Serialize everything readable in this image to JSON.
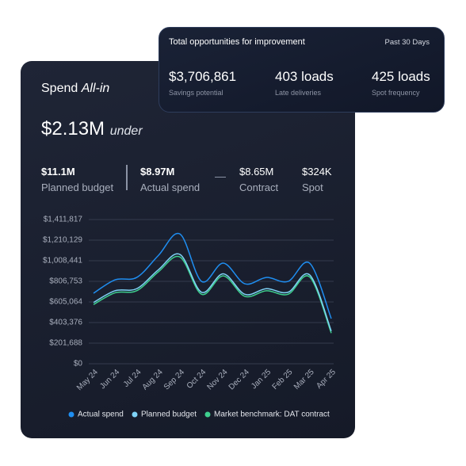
{
  "opportunities": {
    "title": "Total opportunities for improvement",
    "period": "Past 30 Days",
    "metrics": [
      {
        "value": "$3,706,861",
        "label": "Savings potential"
      },
      {
        "value": "403 loads",
        "label": "Late deliveries"
      },
      {
        "value": "425 loads",
        "label": "Spot frequency"
      }
    ]
  },
  "spend": {
    "title": "Spend",
    "title_em": "All-in",
    "amount": "$2.13M",
    "amount_em": "under",
    "stats": [
      {
        "value": "$11.1M",
        "label": "Planned budget"
      },
      {
        "value": "$8.97M",
        "label": "Actual spend"
      },
      {
        "value": "$8.65M",
        "label": "Contract"
      },
      {
        "value": "$324K",
        "label": "Spot"
      }
    ]
  },
  "chart_data": {
    "type": "line",
    "categories": [
      "May 24",
      "Jun 24",
      "Jul 24",
      "Aug 24",
      "Sep 24",
      "Oct 24",
      "Nov 24",
      "Dec 24",
      "Jan 25",
      "Feb 25",
      "Mar 25",
      "Apr 25"
    ],
    "ylim": [
      0,
      1411817
    ],
    "yticks": [
      {
        "value": 0,
        "label": "$0"
      },
      {
        "value": 201688,
        "label": "$201,688"
      },
      {
        "value": 403376,
        "label": "$403,376"
      },
      {
        "value": 605064,
        "label": "$605,064"
      },
      {
        "value": 806753,
        "label": "$806,753"
      },
      {
        "value": 1008441,
        "label": "$1,008,441"
      },
      {
        "value": 1210129,
        "label": "$1,210,129"
      },
      {
        "value": 1411817,
        "label": "$1,411,817"
      }
    ],
    "grid": true,
    "series": [
      {
        "name": "Actual spend",
        "color": "#1f8ef1",
        "values": [
          690000,
          822000,
          845000,
          1060000,
          1270000,
          806000,
          985000,
          783000,
          845000,
          806000,
          985000,
          442000
        ]
      },
      {
        "name": "Planned budget",
        "color": "#7fd3f7",
        "values": [
          600000,
          715000,
          735000,
          920000,
          1070000,
          700000,
          880000,
          680000,
          735000,
          700000,
          870000,
          320000
        ]
      },
      {
        "name": "Market benchmark: DAT contract",
        "color": "#3ecf8e",
        "values": [
          580000,
          695000,
          715000,
          900000,
          1045000,
          680000,
          860000,
          660000,
          715000,
          680000,
          850000,
          300000
        ]
      }
    ]
  }
}
